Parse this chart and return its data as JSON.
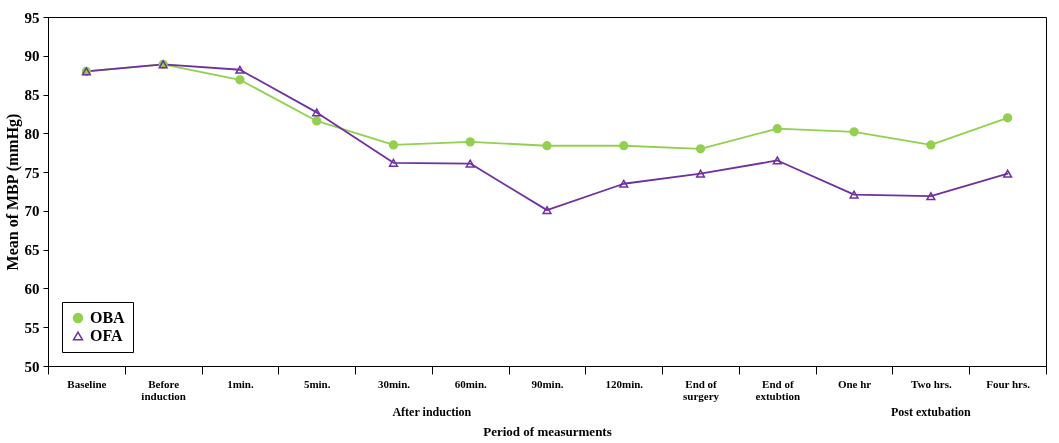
{
  "chart_data": {
    "type": "line",
    "xlabel": "Period of measurments",
    "ylabel": "Mean of MBP (mmHg)",
    "categories": [
      "Baseline",
      "Before induction",
      "1min.",
      "5min.",
      "30min.",
      "60min.",
      "90min.",
      "120min.",
      "End of surgery",
      "End of extubtion",
      "One hr",
      "Two hrs.",
      "Four hrs."
    ],
    "ylim": [
      50,
      95
    ],
    "yticks": [
      50,
      55,
      60,
      65,
      70,
      75,
      80,
      85,
      90,
      95
    ],
    "legend": "bottom left",
    "annotations": [
      "After induction",
      "Post extubation"
    ],
    "series": [
      {
        "name": "OBA",
        "color": "#92d050",
        "marker": "circle",
        "values": [
          88.0,
          88.9,
          86.9,
          81.6,
          78.5,
          78.9,
          78.4,
          78.4,
          78.0,
          80.6,
          80.2,
          78.5,
          82.0
        ]
      },
      {
        "name": "OFA",
        "color": "#7030a0",
        "marker": "triangle",
        "values": [
          88.0,
          88.9,
          88.2,
          82.7,
          76.2,
          76.1,
          70.1,
          73.5,
          74.8,
          76.5,
          72.1,
          71.9,
          74.8
        ]
      }
    ]
  }
}
